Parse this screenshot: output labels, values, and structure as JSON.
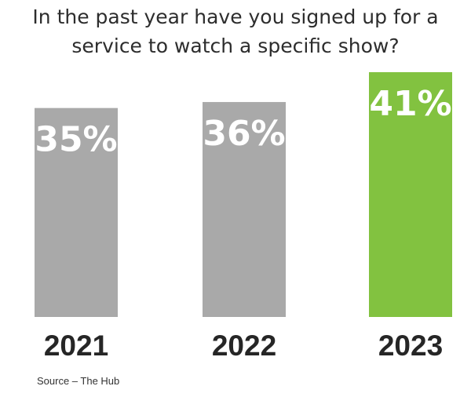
{
  "chart_data": {
    "type": "bar",
    "title_lines": [
      "In the past year have you signed up for a",
      "service to watch a specific show?"
    ],
    "categories": [
      "2021",
      "2022",
      "2023"
    ],
    "values": [
      35,
      36,
      41
    ],
    "value_labels": [
      "35%",
      "36%",
      "41%"
    ],
    "bar_colors": [
      "#a9a9a9",
      "#a9a9a9",
      "#82c240"
    ],
    "ylim": [
      0,
      41
    ],
    "xlabel": "",
    "ylabel": "",
    "grid": false,
    "legend": "none"
  },
  "source": "Source – The Hub",
  "colors": {
    "background": "#ffffff",
    "text": "#262626",
    "label_text": "#ffffff"
  }
}
